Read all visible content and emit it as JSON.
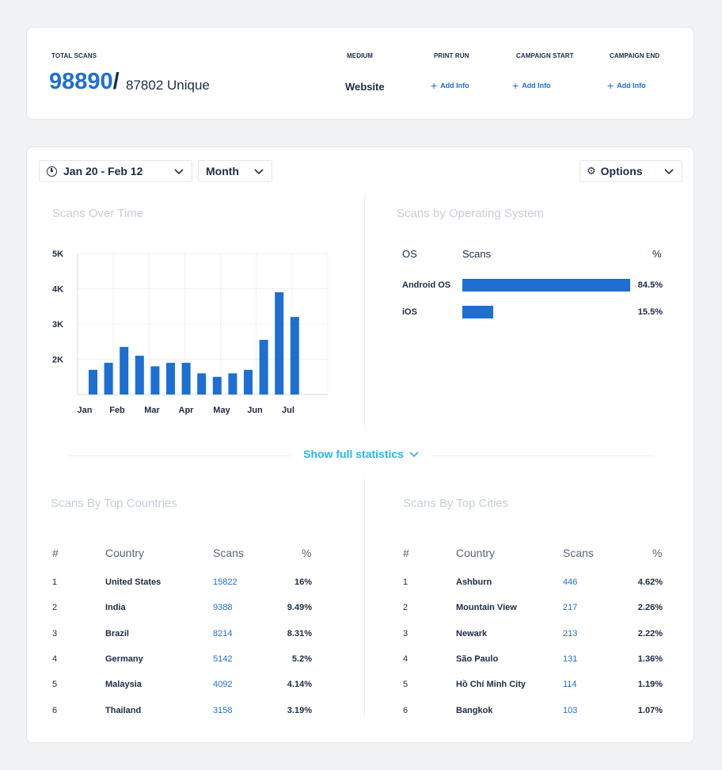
{
  "summary": {
    "total_scans_label": "TOTAL SCANS",
    "total_scans": "98890",
    "slash": "/",
    "unique": "87802 Unique",
    "medium_label": "MEDIUM",
    "medium_value": "Website",
    "print_run_label": "PRINT RUN",
    "campaign_start_label": "CAMPAIGN START",
    "campaign_end_label": "CAMPAIGN END",
    "add_info": "Add Info",
    "add_icon": "+"
  },
  "controls": {
    "date_range": "Jan 20 - Feb 12",
    "period": "Month",
    "options": "Options",
    "gear_icon": "⚙"
  },
  "scans_over_time": {
    "title": "Scans Over Time"
  },
  "chart_data": {
    "type": "bar",
    "title": "Scans Over Time",
    "y_ticks": [
      "2K",
      "3K",
      "4K",
      "5K"
    ],
    "x_labels": [
      "Jan",
      "Feb",
      "Mar",
      "Apr",
      "May",
      "Jun",
      "Jul"
    ],
    "values": [
      1700,
      1900,
      2350,
      2100,
      1800,
      1900,
      1900,
      1600,
      1500,
      1600,
      1700,
      2550,
      3900,
      3200
    ],
    "ylim": [
      1000,
      5000
    ],
    "grid": true,
    "color": "#1d6fd1"
  },
  "os": {
    "title": "Scans by Operating System",
    "headers": {
      "os": "OS",
      "scans": "Scans",
      "pct": "%"
    },
    "rows": [
      {
        "name": "Android OS",
        "pct": "84.5%",
        "fraction": 0.845
      },
      {
        "name": "iOS",
        "pct": "15.5%",
        "fraction": 0.155
      }
    ],
    "bar_color": "#1d6fd1"
  },
  "show_full": "Show full statistics",
  "countries": {
    "title": "Scans By Top Countries",
    "headers": {
      "rank": "#",
      "name": "Country",
      "scans": "Scans",
      "pct": "%"
    },
    "rows": [
      {
        "rank": "1",
        "name": "United States",
        "scans": "15822",
        "pct": "16%"
      },
      {
        "rank": "2",
        "name": "India",
        "scans": "9388",
        "pct": "9.49%"
      },
      {
        "rank": "3",
        "name": "Brazil",
        "scans": "8214",
        "pct": "8.31%"
      },
      {
        "rank": "4",
        "name": "Germany",
        "scans": "5142",
        "pct": "5.2%"
      },
      {
        "rank": "5",
        "name": "Malaysia",
        "scans": "4092",
        "pct": "4.14%"
      },
      {
        "rank": "6",
        "name": "Thailand",
        "scans": "3158",
        "pct": "3.19%"
      }
    ]
  },
  "cities": {
    "title": "Scans By Top Cities",
    "headers": {
      "rank": "#",
      "name": "Country",
      "scans": "Scans",
      "pct": "%"
    },
    "rows": [
      {
        "rank": "1",
        "name": "Ashburn",
        "scans": "446",
        "pct": "4.62%"
      },
      {
        "rank": "2",
        "name": "Mountain View",
        "scans": "217",
        "pct": "2.26%"
      },
      {
        "rank": "3",
        "name": "Newark",
        "scans": "213",
        "pct": "2.22%"
      },
      {
        "rank": "4",
        "name": "São Paulo",
        "scans": "131",
        "pct": "1.36%"
      },
      {
        "rank": "5",
        "name": "Hồ Chí Minh City",
        "scans": "114",
        "pct": "1.19%"
      },
      {
        "rank": "6",
        "name": "Bangkok",
        "scans": "103",
        "pct": "1.07%"
      }
    ]
  }
}
